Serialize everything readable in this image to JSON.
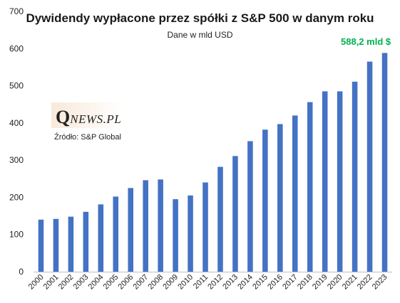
{
  "chart_data": {
    "type": "bar",
    "title": "Dywidendy wypłacone przez spółki z S&P 500 w danym roku",
    "subtitle": "Dane w mld USD",
    "categories": [
      "2000",
      "2001",
      "2002",
      "2003",
      "2004",
      "2005",
      "2006",
      "2007",
      "2008",
      "2009",
      "2010",
      "2011",
      "2012",
      "2013",
      "2014",
      "2015",
      "2016",
      "2017",
      "2018",
      "2019",
      "2020",
      "2021",
      "2022",
      "2023"
    ],
    "values": [
      140,
      142,
      148,
      161,
      181,
      202,
      225,
      246,
      248,
      195,
      205,
      240,
      282,
      311,
      351,
      382,
      397,
      420,
      456,
      485,
      485,
      511,
      565,
      588.2
    ],
    "ylim": [
      0,
      700
    ],
    "yticks": [
      0,
      100,
      200,
      300,
      400,
      500,
      600,
      700
    ],
    "xlabel": "",
    "ylabel": "",
    "grid": false,
    "bar_color": "#4472c4",
    "annotation": {
      "text": "588,2 mld $",
      "category": "2023",
      "color": "#00b050"
    }
  },
  "logo": {
    "q": "Q",
    "rest": "NEWS.PL"
  },
  "source": "Źródło: S&P Global"
}
